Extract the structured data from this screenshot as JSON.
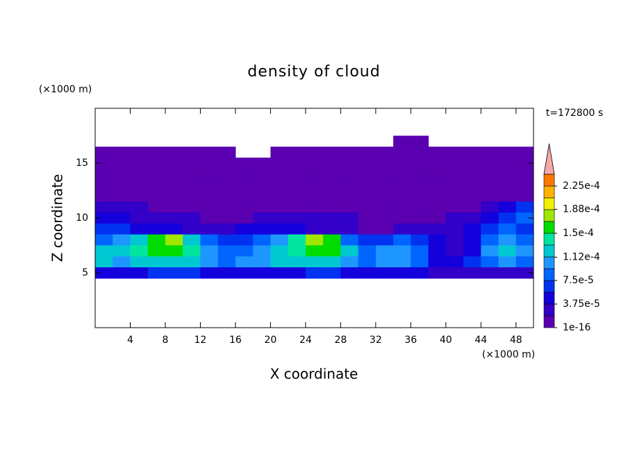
{
  "chart_data": {
    "type": "contour",
    "title": "density of cloud",
    "x_label": "X coordinate",
    "y_label": "Z coordinate",
    "x_unit": "(×1000 m)",
    "y_unit": "(×1000 m)",
    "annotation": "t=172800 s",
    "xlim": [
      0,
      50
    ],
    "ylim": [
      0,
      20
    ],
    "xticks": [
      4,
      8,
      12,
      16,
      20,
      24,
      28,
      32,
      36,
      40,
      44,
      48
    ],
    "yticks": [
      5,
      10,
      15
    ],
    "x": [
      1,
      3,
      5,
      7,
      9,
      11,
      13,
      15,
      17,
      19,
      21,
      23,
      25,
      27,
      29,
      31,
      33,
      35,
      37,
      39,
      41,
      43,
      45,
      47,
      49
    ],
    "z": [
      17,
      16,
      15,
      14,
      13,
      12,
      11,
      10,
      9,
      8,
      7,
      6,
      5
    ],
    "values": [
      [
        null,
        null,
        null,
        null,
        null,
        null,
        null,
        null,
        null,
        null,
        null,
        null,
        null,
        null,
        null,
        null,
        null,
        1e-05,
        1e-05,
        null,
        null,
        null,
        null,
        null,
        null
      ],
      [
        1e-05,
        1e-05,
        1e-05,
        1e-05,
        1e-05,
        1e-05,
        1e-05,
        1e-05,
        null,
        null,
        1e-05,
        1e-05,
        1e-05,
        1e-05,
        1e-05,
        1e-05,
        1e-05,
        1e-05,
        1e-05,
        1e-05,
        1e-05,
        1e-05,
        1e-05,
        1e-05,
        1e-05
      ],
      [
        1e-05,
        1e-05,
        1e-05,
        1e-05,
        1e-05,
        1e-05,
        1e-05,
        1e-05,
        1e-05,
        1e-05,
        1e-05,
        1e-05,
        1e-05,
        1e-05,
        1e-05,
        1e-05,
        1e-05,
        1e-05,
        1e-05,
        1e-05,
        1e-05,
        1e-05,
        1e-05,
        1e-05,
        1e-05
      ],
      [
        1e-05,
        1e-05,
        1e-05,
        1e-05,
        1e-05,
        1e-05,
        1e-05,
        1e-05,
        1e-05,
        1e-05,
        1e-05,
        1e-05,
        1e-05,
        1e-05,
        1e-05,
        1e-05,
        1e-05,
        1e-05,
        1e-05,
        1e-05,
        1e-05,
        1e-05,
        1e-05,
        1e-05,
        1e-05
      ],
      [
        1e-05,
        1e-05,
        1e-05,
        1e-05,
        1e-05,
        1e-05,
        1e-05,
        1e-05,
        1e-05,
        1e-05,
        1e-05,
        1e-05,
        1e-05,
        1e-05,
        1e-05,
        1e-05,
        1e-05,
        1e-05,
        1e-05,
        1e-05,
        1e-05,
        1e-05,
        1e-05,
        1e-05,
        1e-05
      ],
      [
        1e-05,
        1e-05,
        1e-05,
        1e-05,
        1e-05,
        1e-05,
        1e-05,
        1e-05,
        1e-05,
        1e-05,
        1e-05,
        1e-05,
        1e-05,
        1e-05,
        1e-05,
        1e-05,
        1e-05,
        1e-05,
        1e-05,
        1e-05,
        1e-05,
        1e-05,
        1e-05,
        1e-05,
        1e-05
      ],
      [
        2.5e-05,
        2.5e-05,
        2.5e-05,
        1e-05,
        1e-05,
        1e-05,
        1e-05,
        1e-05,
        1e-05,
        1e-05,
        1e-05,
        1e-05,
        1e-05,
        1e-05,
        1e-05,
        1e-05,
        1e-05,
        1e-05,
        1e-05,
        1e-05,
        1e-05,
        1e-05,
        2.5e-05,
        4.5e-05,
        6.5e-05
      ],
      [
        4.5e-05,
        4.5e-05,
        2.5e-05,
        2.5e-05,
        2.5e-05,
        2.5e-05,
        1e-05,
        1e-05,
        1e-05,
        2.5e-05,
        2.5e-05,
        2.5e-05,
        2.5e-05,
        2.5e-05,
        2.5e-05,
        1e-05,
        1e-05,
        1e-05,
        1e-05,
        1e-05,
        2.5e-05,
        2.5e-05,
        4.5e-05,
        6.5e-05,
        8.5e-05
      ],
      [
        6.5e-05,
        6.5e-05,
        4.5e-05,
        4.5e-05,
        4.5e-05,
        2.5e-05,
        2.5e-05,
        2.5e-05,
        4.5e-05,
        4.5e-05,
        4.5e-05,
        4.5e-05,
        2.5e-05,
        2.5e-05,
        2.5e-05,
        1e-05,
        1e-05,
        2.5e-05,
        2.5e-05,
        2.5e-05,
        2.5e-05,
        4.5e-05,
        6.5e-05,
        8.5e-05,
        6.5e-05
      ],
      [
        8.5e-05,
        0.0001,
        0.00012,
        0.00016,
        0.00018,
        0.00012,
        8.5e-05,
        6.5e-05,
        6.5e-05,
        8.5e-05,
        0.0001,
        0.00014,
        0.00018,
        0.00016,
        8.5e-05,
        6.5e-05,
        6.5e-05,
        8.5e-05,
        6.5e-05,
        4.5e-05,
        2.5e-05,
        4.5e-05,
        8.5e-05,
        0.0001,
        8.5e-05
      ],
      [
        0.00012,
        0.00012,
        0.00014,
        0.00016,
        0.00016,
        0.00014,
        0.0001,
        8.5e-05,
        8.5e-05,
        0.0001,
        0.00012,
        0.00014,
        0.00016,
        0.00016,
        0.00012,
        8.5e-05,
        0.0001,
        0.0001,
        8.5e-05,
        4.5e-05,
        2.5e-05,
        4.5e-05,
        0.0001,
        0.00012,
        0.0001
      ],
      [
        0.00012,
        0.0001,
        0.00012,
        0.00012,
        0.00012,
        0.00012,
        0.0001,
        8.5e-05,
        0.0001,
        0.0001,
        0.00012,
        0.00012,
        0.00012,
        0.00012,
        0.0001,
        8.5e-05,
        0.0001,
        0.0001,
        8.5e-05,
        4.5e-05,
        4.5e-05,
        6.5e-05,
        8.5e-05,
        0.0001,
        8.5e-05
      ],
      [
        4.5e-05,
        4.5e-05,
        4.5e-05,
        6.5e-05,
        6.5e-05,
        6.5e-05,
        4.5e-05,
        4.5e-05,
        4.5e-05,
        4.5e-05,
        4.5e-05,
        4.5e-05,
        6.5e-05,
        6.5e-05,
        4.5e-05,
        4.5e-05,
        4.5e-05,
        4.5e-05,
        4.5e-05,
        2.5e-05,
        2.5e-05,
        2.5e-05,
        2.5e-05,
        2.5e-05,
        2.5e-05
      ]
    ],
    "levels": [
      1e-16,
      1.875e-05,
      3.75e-05,
      5.625e-05,
      7.5e-05,
      9.375e-05,
      0.0001125,
      0.00013125,
      0.00015,
      0.00016875,
      0.0001875,
      0.00020625,
      0.000225,
      0.00024375
    ],
    "colors": [
      "#5a00b0",
      "#3200c8",
      "#1400dc",
      "#0032f0",
      "#0064ff",
      "#1e96ff",
      "#00c8d2",
      "#00e6a0",
      "#00dc00",
      "#a0e600",
      "#f0f000",
      "#ffb400",
      "#ff7800"
    ],
    "over_color": "#f4a8a8",
    "clim": [
      1e-16,
      0.00024375
    ],
    "cticks": [
      1e-16,
      {
        "value": 3.75e-05,
        "label": "3.75e-5"
      },
      {
        "value": 7.5e-05,
        "label": "7.5e-5"
      },
      {
        "value": 0.000112,
        "label": "1.12e-4"
      },
      {
        "value": 0.00015,
        "label": "1.5e-4"
      },
      {
        "value": 0.000188,
        "label": "1.88e-4"
      },
      {
        "value": 0.000225,
        "label": "2.25e-4"
      }
    ]
  }
}
